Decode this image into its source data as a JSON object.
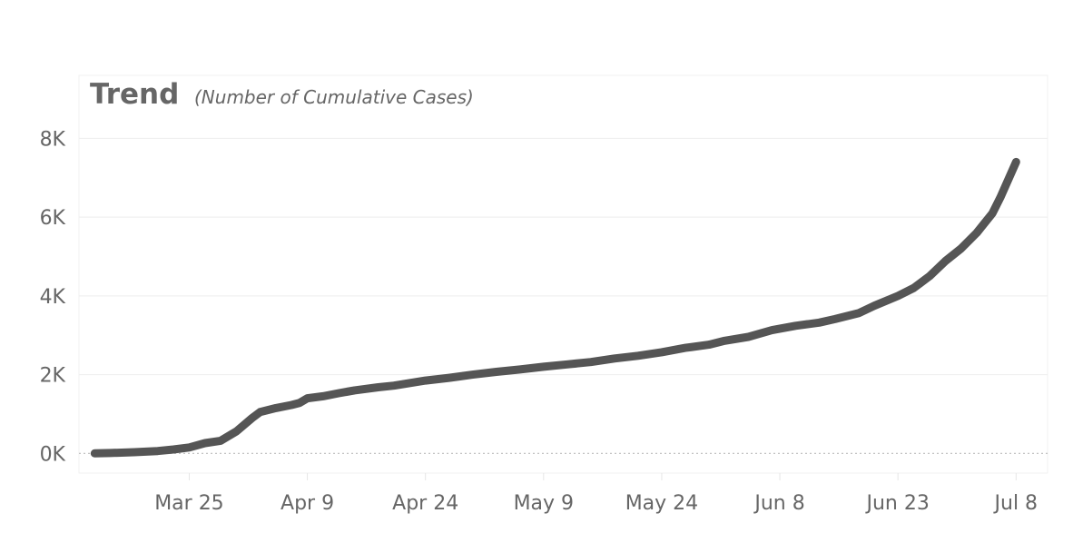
{
  "chart_data": {
    "type": "line",
    "title": "Trend",
    "subtitle": "(Number of Cumulative Cases)",
    "xlabel": "",
    "ylabel": "",
    "x_tick_labels": [
      "Mar 25",
      "Apr 9",
      "Apr 24",
      "May 9",
      "May 24",
      "Jun 8",
      "Jun 23",
      "Jul 8"
    ],
    "x_tick_dates": [
      "2020-03-25",
      "2020-04-09",
      "2020-04-24",
      "2020-05-09",
      "2020-05-24",
      "2020-06-08",
      "2020-06-23",
      "2020-07-08"
    ],
    "y_tick_labels": [
      "0K",
      "2K",
      "4K",
      "6K",
      "8K"
    ],
    "y_tick_values": [
      0,
      2000,
      4000,
      6000,
      8000
    ],
    "xlim": [
      "2020-03-11",
      "2020-07-12"
    ],
    "ylim": [
      -500,
      9600
    ],
    "grid": true,
    "line_color": "#555555",
    "series": [
      {
        "x": [
          "2020-03-13",
          "2020-03-15",
          "2020-03-18",
          "2020-03-21",
          "2020-03-23",
          "2020-03-25",
          "2020-03-27",
          "2020-03-29",
          "2020-03-31",
          "2020-04-02",
          "2020-04-03",
          "2020-04-05",
          "2020-04-07",
          "2020-04-08",
          "2020-04-09",
          "2020-04-11",
          "2020-04-13",
          "2020-04-15",
          "2020-04-18",
          "2020-04-20",
          "2020-04-24",
          "2020-04-27",
          "2020-04-30",
          "2020-05-03",
          "2020-05-06",
          "2020-05-09",
          "2020-05-12",
          "2020-05-15",
          "2020-05-18",
          "2020-05-21",
          "2020-05-24",
          "2020-05-27",
          "2020-05-30",
          "2020-06-01",
          "2020-06-04",
          "2020-06-07",
          "2020-06-10",
          "2020-06-13",
          "2020-06-15",
          "2020-06-18",
          "2020-06-20",
          "2020-06-23",
          "2020-06-25",
          "2020-06-27",
          "2020-06-29",
          "2020-07-01",
          "2020-07-03",
          "2020-07-05",
          "2020-07-06",
          "2020-07-08"
        ],
        "y": [
          0,
          10,
          30,
          60,
          100,
          150,
          260,
          320,
          560,
          900,
          1050,
          1150,
          1230,
          1280,
          1400,
          1450,
          1530,
          1600,
          1680,
          1720,
          1850,
          1920,
          2000,
          2070,
          2130,
          2200,
          2260,
          2320,
          2410,
          2480,
          2570,
          2680,
          2760,
          2860,
          2960,
          3130,
          3240,
          3320,
          3410,
          3560,
          3750,
          4000,
          4200,
          4500,
          4880,
          5200,
          5600,
          6100,
          6500,
          7400
        ]
      }
    ]
  }
}
